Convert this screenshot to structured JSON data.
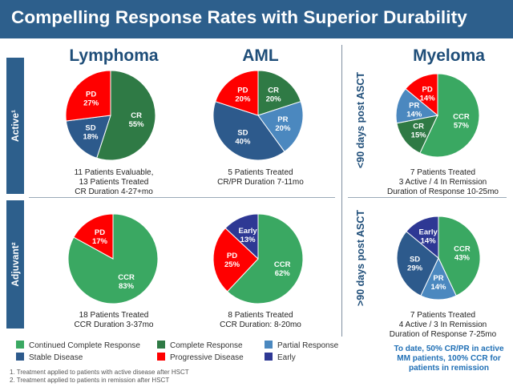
{
  "header": {
    "title": "Compelling Response Rates with Superior Durability"
  },
  "columns": {
    "lymphoma": "Lymphoma",
    "aml": "AML",
    "myeloma": "Myeloma"
  },
  "row_labels": {
    "active": "Active¹",
    "adjuvant": "Adjuvant²"
  },
  "myeloma_row_labels": {
    "active": "<90 days post ASCT",
    "adjuvant": ">90 days post ASCT"
  },
  "colors": {
    "CCR": "#3aa862",
    "CR": "#2f7a45",
    "PR": "#4b88bf",
    "SD": "#2d5a8c",
    "PD": "#ff0000",
    "Early": "#2e3894",
    "label_text": "#ffffff"
  },
  "chart_data": [
    {
      "type": "pie",
      "name": "lymphoma_active",
      "slices": [
        {
          "label": "CR",
          "value": 55,
          "text": "55%"
        },
        {
          "label": "SD",
          "value": 18,
          "text": "18%"
        },
        {
          "label": "PD",
          "value": 27,
          "text": "27%"
        }
      ]
    },
    {
      "type": "pie",
      "name": "aml_active",
      "slices": [
        {
          "label": "CR",
          "value": 20,
          "text": "20%"
        },
        {
          "label": "PR",
          "value": 20,
          "text": "20%"
        },
        {
          "label": "SD",
          "value": 40,
          "text": "40%"
        },
        {
          "label": "PD",
          "value": 20,
          "text": "20%"
        }
      ]
    },
    {
      "type": "pie",
      "name": "myeloma_active",
      "slices": [
        {
          "label": "CCR",
          "value": 57,
          "text": "57%"
        },
        {
          "label": "CR",
          "value": 15,
          "text": "15%"
        },
        {
          "label": "PR",
          "value": 14,
          "text": "14%"
        },
        {
          "label": "PD",
          "value": 14,
          "text": "14%"
        }
      ]
    },
    {
      "type": "pie",
      "name": "lymphoma_adjuvant",
      "slices": [
        {
          "label": "CCR",
          "value": 83,
          "text": "83%"
        },
        {
          "label": "PD",
          "value": 17,
          "text": "17%"
        }
      ]
    },
    {
      "type": "pie",
      "name": "aml_adjuvant",
      "slices": [
        {
          "label": "CCR",
          "value": 62,
          "text": "62%"
        },
        {
          "label": "PD",
          "value": 25,
          "text": "25%"
        },
        {
          "label": "Early",
          "value": 13,
          "text": "13%"
        }
      ]
    },
    {
      "type": "pie",
      "name": "myeloma_adjuvant",
      "slices": [
        {
          "label": "CCR",
          "value": 43,
          "text": "43%"
        },
        {
          "label": "PR",
          "value": 14,
          "text": "14%"
        },
        {
          "label": "SD",
          "value": 29,
          "text": "29%"
        },
        {
          "label": "Early",
          "value": 14,
          "text": "14%"
        }
      ]
    }
  ],
  "captions": {
    "lymphoma_active": [
      "11 Patients Evaluable,",
      "13 Patients Treated",
      "CR Duration 4-27+mo"
    ],
    "aml_active": [
      "5 Patients Treated",
      "CR/PR Duration 7-11mo"
    ],
    "myeloma_active": [
      "7 Patients Treated",
      "3 Active / 4 In Remission",
      "Duration of Response 10-25mo"
    ],
    "lymphoma_adjuvant": [
      "18 Patients Treated",
      "CCR Duration 3-37mo"
    ],
    "aml_adjuvant": [
      "8 Patients Treated",
      "CCR Duration: 8-20mo"
    ],
    "myeloma_adjuvant": [
      "7 Patients Treated",
      "4 Active / 3 In Remission",
      "Duration of Response 7-25mo"
    ]
  },
  "note": [
    "To date, 50% CR/PR in active",
    "MM patients, 100% CCR for",
    "patients in remission"
  ],
  "legend": [
    {
      "key": "CCR",
      "label": "Continued Complete Response"
    },
    {
      "key": "CR",
      "label": "Complete Response"
    },
    {
      "key": "PR",
      "label": "Partial Response"
    },
    {
      "key": "SD",
      "label": "Stable Disease"
    },
    {
      "key": "PD",
      "label": "Progressive Disease"
    },
    {
      "key": "Early",
      "label": "Early"
    }
  ],
  "footnotes": [
    "1.   Treatment applied to patients with active disease after HSCT",
    "2.   Treatment applied to patients in remission after HSCT"
  ]
}
